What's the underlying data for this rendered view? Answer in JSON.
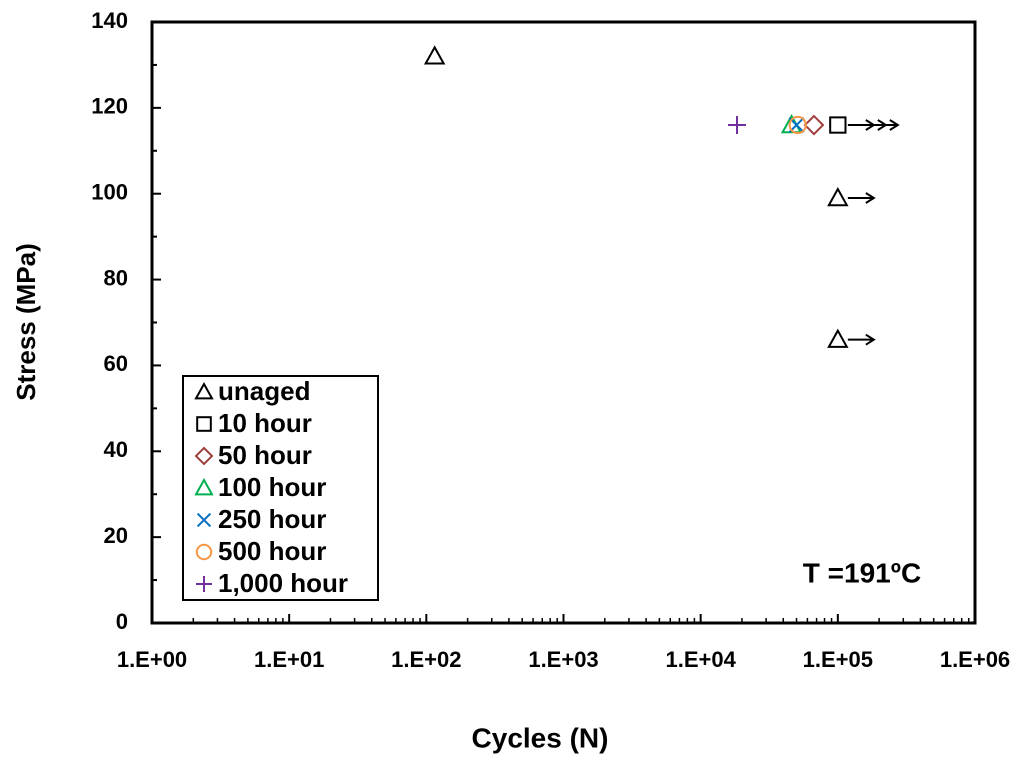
{
  "chart_data": {
    "type": "scatter",
    "x_label": "Cycles (N)",
    "y_label": "Stress (MPa)",
    "annotation": "T =191ºC",
    "x_scale": "log",
    "xlim": [
      1,
      1000000
    ],
    "xticks": [
      {
        "value": 1,
        "label": "1.E+00"
      },
      {
        "value": 10,
        "label": "1.E+01"
      },
      {
        "value": 100,
        "label": "1.E+02"
      },
      {
        "value": 1000,
        "label": "1.E+03"
      },
      {
        "value": 10000,
        "label": "1.E+04"
      },
      {
        "value": 100000,
        "label": "1.E+05"
      },
      {
        "value": 1000000,
        "label": "1.E+06"
      }
    ],
    "ylim": [
      0,
      140
    ],
    "yticks": [
      0,
      20,
      40,
      60,
      80,
      100,
      120,
      140
    ],
    "legend": "bottom-left",
    "series": [
      {
        "name": "unaged",
        "marker": "triangle",
        "color": "#000000",
        "x": [
          115,
          100000,
          100000
        ],
        "values": [
          132,
          99,
          66
        ],
        "runout": [
          false,
          true,
          true
        ]
      },
      {
        "name": "10 hour",
        "marker": "square",
        "color": "#000000",
        "x": [
          100000
        ],
        "values": [
          116
        ],
        "runout": [
          true
        ]
      },
      {
        "name": "50 hour",
        "marker": "diamond",
        "color": "#a0403c",
        "x": [
          67000
        ],
        "values": [
          116
        ],
        "runout": [
          false
        ]
      },
      {
        "name": "100 hour",
        "marker": "triangle",
        "color": "#00b050",
        "x": [
          46000
        ],
        "values": [
          116
        ],
        "runout": [
          false
        ]
      },
      {
        "name": "250 hour",
        "marker": "x",
        "color": "#0070c0",
        "x": [
          50000
        ],
        "values": [
          116
        ],
        "runout": [
          false
        ]
      },
      {
        "name": "500 hour",
        "marker": "circle",
        "color": "#f79646",
        "x": [
          51000
        ],
        "values": [
          116
        ],
        "runout": [
          false
        ]
      },
      {
        "name": "1,000 hour",
        "marker": "plus",
        "color": "#7030a0",
        "x": [
          18400
        ],
        "values": [
          116
        ],
        "runout": [
          false
        ]
      }
    ]
  }
}
